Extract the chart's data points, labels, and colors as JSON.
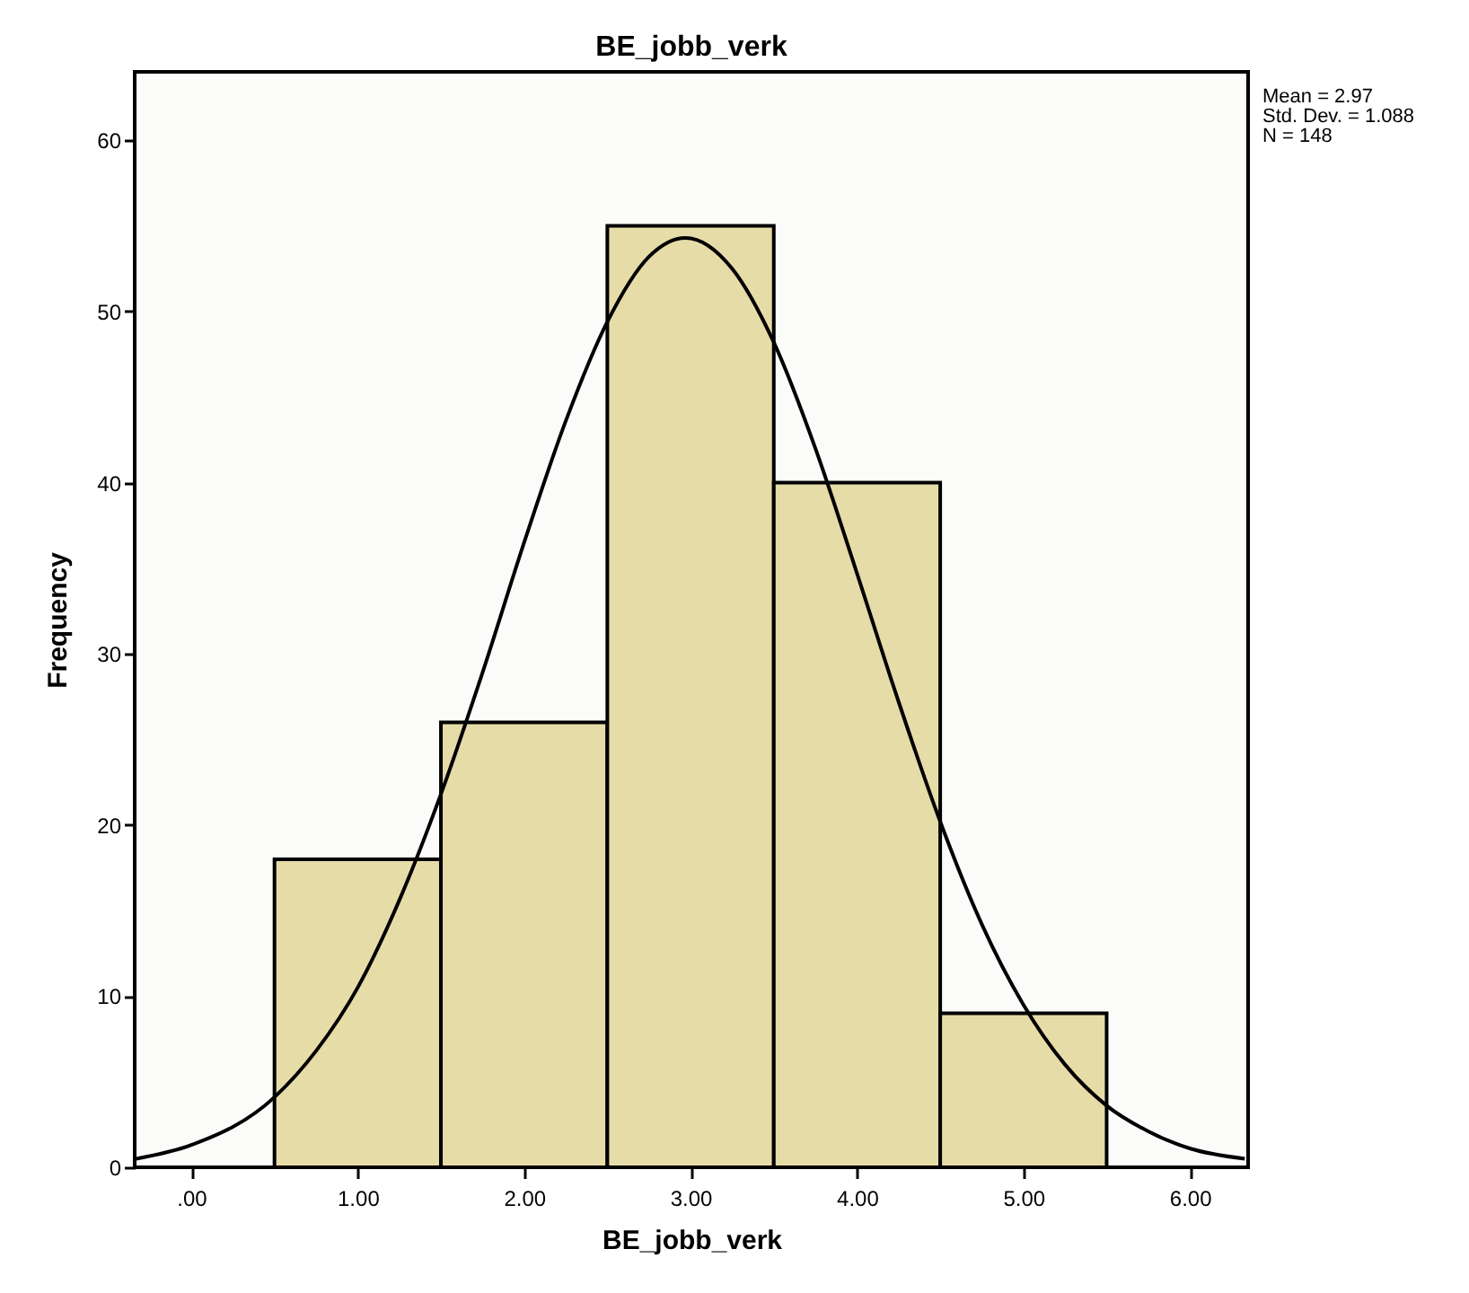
{
  "chart_data": {
    "type": "histogram",
    "title": "BE_jobb_verk",
    "xlabel": "BE_jobb_verk",
    "ylabel": "Frequency",
    "bins": [
      0.5,
      1.5,
      2.5,
      3.5,
      4.5,
      5.5
    ],
    "values": [
      18,
      26,
      55,
      40,
      9
    ],
    "color": "#e6dca8",
    "series": [
      {
        "type": "line",
        "color": "#000000",
        "x": [
          -0.33,
          0,
          0.5,
          0.75,
          1,
          1.25,
          1.5,
          1.75,
          2,
          2.25,
          2.5,
          2.75,
          2.97,
          3.25,
          3.5,
          3.75,
          4,
          4.25,
          4.5,
          4.75,
          5,
          5.25,
          5.5,
          5.75,
          6,
          6.33
        ],
        "values": [
          0.5,
          1.3,
          4.1,
          6.8,
          10.5,
          15.6,
          21.8,
          28.9,
          36.5,
          43.6,
          49.4,
          53.2,
          54.3,
          52.5,
          48.2,
          42.0,
          34.7,
          27.2,
          20.2,
          14.2,
          9.5,
          6.0,
          3.6,
          2.1,
          1.1,
          0.5
        ]
      }
    ],
    "xlim": [
      -0.34,
      6.35
    ],
    "ylim": [
      0,
      64
    ],
    "xticks": [
      {
        "value": 0,
        "label": ".00"
      },
      {
        "value": 1,
        "label": "1.00"
      },
      {
        "value": 2,
        "label": "2.00"
      },
      {
        "value": 3,
        "label": "3.00"
      },
      {
        "value": 4,
        "label": "4.00"
      },
      {
        "value": 5,
        "label": "5.00"
      },
      {
        "value": 6,
        "label": "6.00"
      }
    ],
    "yticks": [
      0,
      10,
      20,
      30,
      40,
      50,
      60
    ],
    "annotations": [
      "Mean = 2.97",
      "Std. Dev. = 1.088",
      "N = 148"
    ]
  }
}
